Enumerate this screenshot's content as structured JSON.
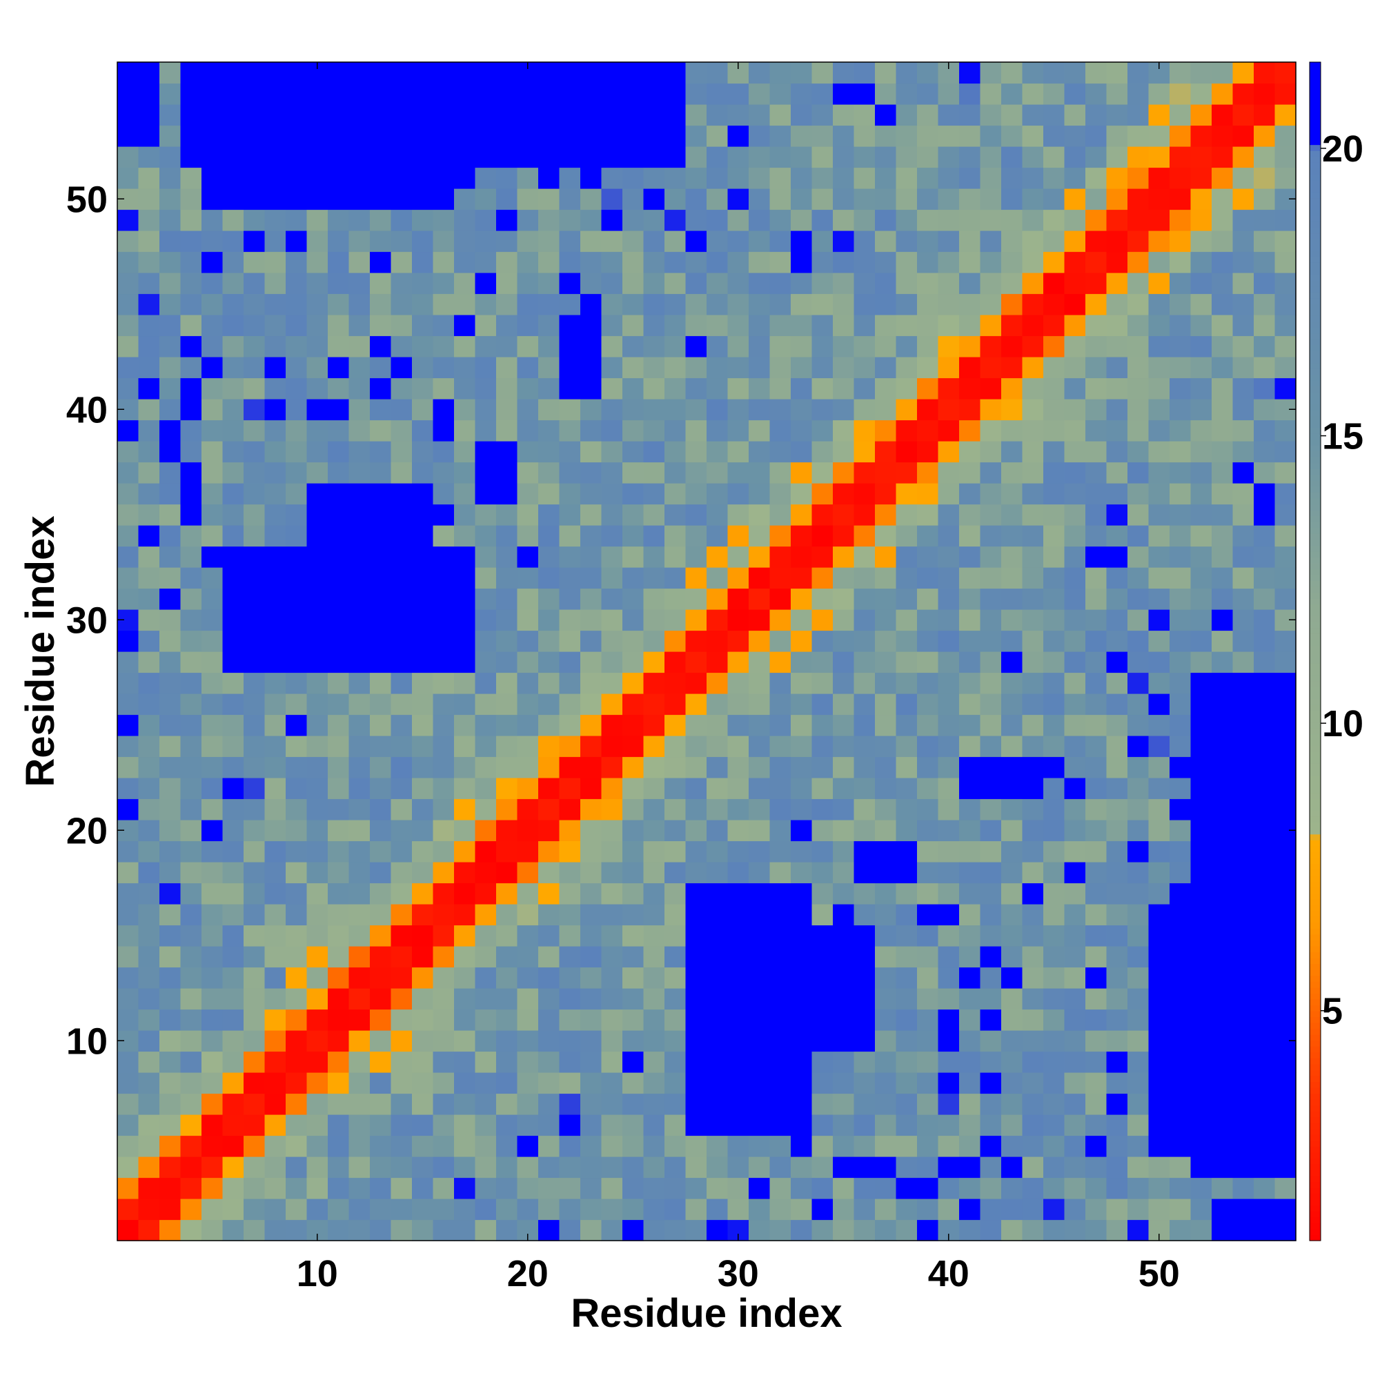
{
  "chart_data": {
    "type": "heatmap",
    "title": "",
    "xlabel": "Residue index",
    "ylabel": "Residue index",
    "n_residues": 56,
    "xlim": [
      0.5,
      56.5
    ],
    "ylim": [
      0.5,
      56.5
    ],
    "x_ticks": [
      10,
      20,
      30,
      40,
      50
    ],
    "y_ticks": [
      10,
      20,
      30,
      40,
      50
    ],
    "colorbar": {
      "ticks": [
        5,
        10,
        15,
        20
      ],
      "range": [
        1,
        21.5
      ],
      "stops": [
        {
          "value": 1.0,
          "color": "#ff0000"
        },
        {
          "value": 3.5,
          "color": "#ff3300"
        },
        {
          "value": 5.0,
          "color": "#ff6600"
        },
        {
          "value": 6.5,
          "color": "#ff9900"
        },
        {
          "value": 8.0,
          "color": "#ffaa00"
        },
        {
          "value": 8.1,
          "color": "#9db48c"
        },
        {
          "value": 12.0,
          "color": "#8faa92"
        },
        {
          "value": 15.0,
          "color": "#6a93a6"
        },
        {
          "value": 20.0,
          "color": "#5b82bb"
        },
        {
          "value": 20.1,
          "color": "#0000ff"
        },
        {
          "value": 21.5,
          "color": "#0000ff"
        }
      ]
    },
    "blue_value": 21,
    "regions": [
      {
        "x": [
          28,
          33
        ],
        "y": [
          6,
          17
        ],
        "value": 21
      },
      {
        "x": [
          33,
          36
        ],
        "y": [
          10,
          15
        ],
        "value": 21
      },
      {
        "x": [
          52,
          56
        ],
        "y": [
          4,
          27
        ],
        "value": 21
      },
      {
        "x": [
          53,
          56
        ],
        "y": [
          1,
          2
        ],
        "value": 21
      },
      {
        "x": [
          6,
          15
        ],
        "y": [
          29,
          33
        ],
        "value": 21
      },
      {
        "x": [
          10,
          14
        ],
        "y": [
          33,
          36
        ],
        "value": 21
      },
      {
        "x": [
          5,
          16
        ],
        "y": [
          50,
          56
        ],
        "value": 21
      },
      {
        "x": [
          19,
          21
        ],
        "y": [
          53,
          56
        ],
        "value": 21
      },
      {
        "x": [
          22,
          26
        ],
        "y": [
          52,
          56
        ],
        "value": 21
      },
      {
        "x": [
          36,
          38
        ],
        "y": [
          18,
          19
        ],
        "value": 21
      },
      {
        "x": [
          41,
          44
        ],
        "y": [
          22,
          23
        ],
        "value": 21
      },
      {
        "x": [
          35,
          37
        ],
        "y": [
          4,
          4
        ],
        "value": 21
      }
    ],
    "noise_seed": 7
  }
}
